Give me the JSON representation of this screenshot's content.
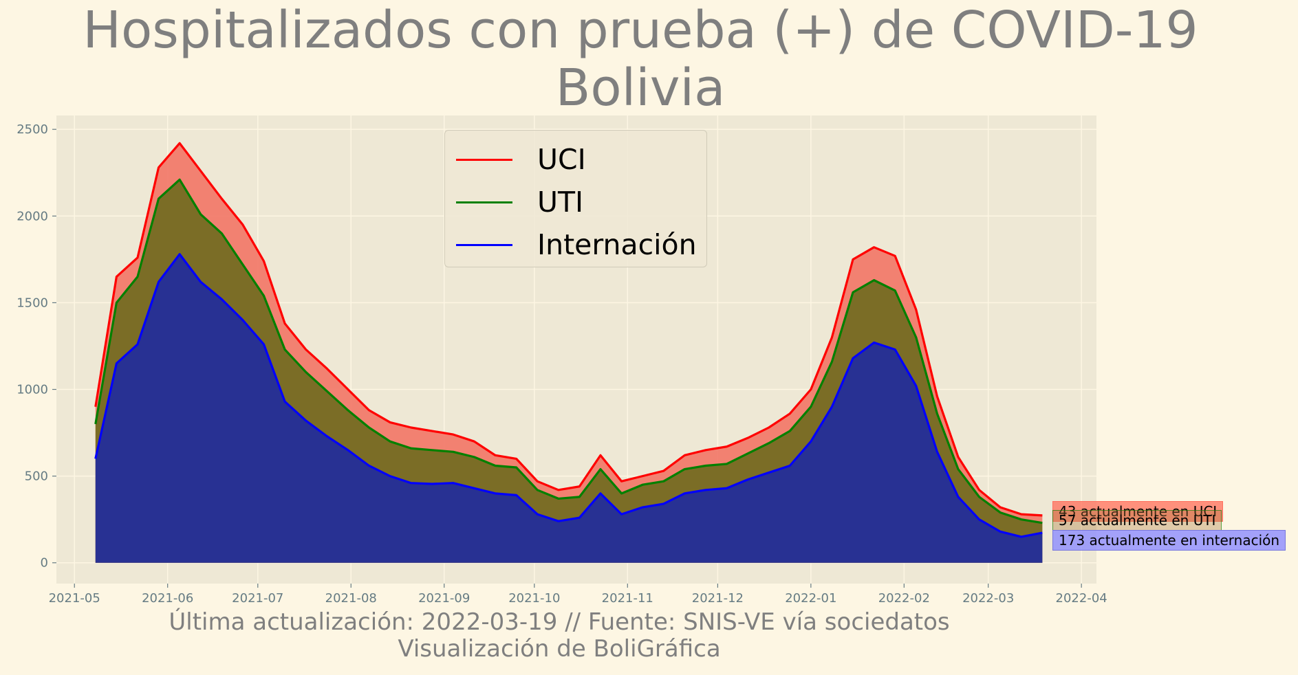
{
  "title": {
    "line1": "Hospitalizados con prueba (+) de COVID-19",
    "line2": "Bolivia"
  },
  "footer": {
    "line1": "Última actualización: 2022-03-19 // Fuente: SNIS-VE vía sociedatos",
    "line2": "Visualización de BoliGráfica"
  },
  "legend": [
    {
      "label": "UCI",
      "color": "#ff0000"
    },
    {
      "label": "UTI",
      "color": "#008000"
    },
    {
      "label": "Internación",
      "color": "#0000ff"
    }
  ],
  "end_labels": {
    "uci": "43 actualmente en UCI",
    "uti": "57 actualmente en UTI",
    "internacion": "173 actualmente en internación"
  },
  "chart_data": {
    "type": "area",
    "title": "Hospitalizados con prueba (+) de COVID-19\nBolivia",
    "xlabel": "",
    "ylabel": "",
    "stacked": true,
    "grid": true,
    "legend_position": "upper-center",
    "ylim": [
      -120,
      2580
    ],
    "xlim": [
      "2021-04-25",
      "2022-04-06"
    ],
    "y_ticks": [
      0,
      500,
      1000,
      1500,
      2000,
      2500
    ],
    "x_ticks": [
      "2021-05",
      "2021-06",
      "2021-07",
      "2021-08",
      "2021-09",
      "2021-10",
      "2021-11",
      "2021-12",
      "2022-01",
      "2022-02",
      "2022-03",
      "2022-04"
    ],
    "x": [
      "2021-05-08",
      "2021-05-15",
      "2021-05-22",
      "2021-05-29",
      "2021-06-05",
      "2021-06-12",
      "2021-06-19",
      "2021-06-26",
      "2021-07-03",
      "2021-07-10",
      "2021-07-17",
      "2021-07-24",
      "2021-07-31",
      "2021-08-07",
      "2021-08-14",
      "2021-08-21",
      "2021-08-28",
      "2021-09-04",
      "2021-09-11",
      "2021-09-18",
      "2021-09-25",
      "2021-10-02",
      "2021-10-09",
      "2021-10-16",
      "2021-10-23",
      "2021-10-30",
      "2021-11-06",
      "2021-11-13",
      "2021-11-20",
      "2021-11-27",
      "2021-12-04",
      "2021-12-11",
      "2021-12-18",
      "2021-12-25",
      "2022-01-01",
      "2022-01-08",
      "2022-01-15",
      "2022-01-22",
      "2022-01-29",
      "2022-02-05",
      "2022-02-12",
      "2022-02-19",
      "2022-02-26",
      "2022-03-05",
      "2022-03-12",
      "2022-03-19"
    ],
    "series": [
      {
        "name": "Internación",
        "color": "#0000ff",
        "fill": "#1f2aa0",
        "values": [
          600,
          1150,
          1260,
          1620,
          1780,
          1620,
          1520,
          1400,
          1260,
          930,
          820,
          730,
          650,
          560,
          500,
          460,
          455,
          460,
          430,
          400,
          390,
          280,
          240,
          260,
          400,
          280,
          320,
          340,
          400,
          420,
          430,
          480,
          520,
          560,
          700,
          900,
          1180,
          1270,
          1230,
          1020,
          640,
          380,
          250,
          180,
          150,
          173
        ]
      },
      {
        "name": "UTI",
        "color": "#008000",
        "fill": "#6e6a1e",
        "values": [
          800,
          1500,
          1650,
          2100,
          2210,
          2010,
          1900,
          1720,
          1540,
          1230,
          1100,
          990,
          880,
          780,
          700,
          660,
          650,
          640,
          610,
          560,
          550,
          420,
          370,
          380,
          540,
          400,
          450,
          470,
          540,
          560,
          570,
          630,
          690,
          760,
          900,
          1160,
          1560,
          1630,
          1570,
          1300,
          860,
          540,
          380,
          290,
          250,
          230
        ]
      },
      {
        "name": "UCI",
        "color": "#ff0000",
        "fill": "#f27566",
        "values": [
          900,
          1650,
          1760,
          2280,
          2420,
          2260,
          2100,
          1950,
          1740,
          1380,
          1230,
          1120,
          1000,
          880,
          810,
          780,
          760,
          740,
          700,
          620,
          600,
          470,
          420,
          440,
          620,
          470,
          500,
          530,
          620,
          650,
          670,
          720,
          780,
          860,
          1000,
          1300,
          1750,
          1820,
          1770,
          1460,
          960,
          610,
          420,
          320,
          280,
          273
        ]
      }
    ]
  }
}
